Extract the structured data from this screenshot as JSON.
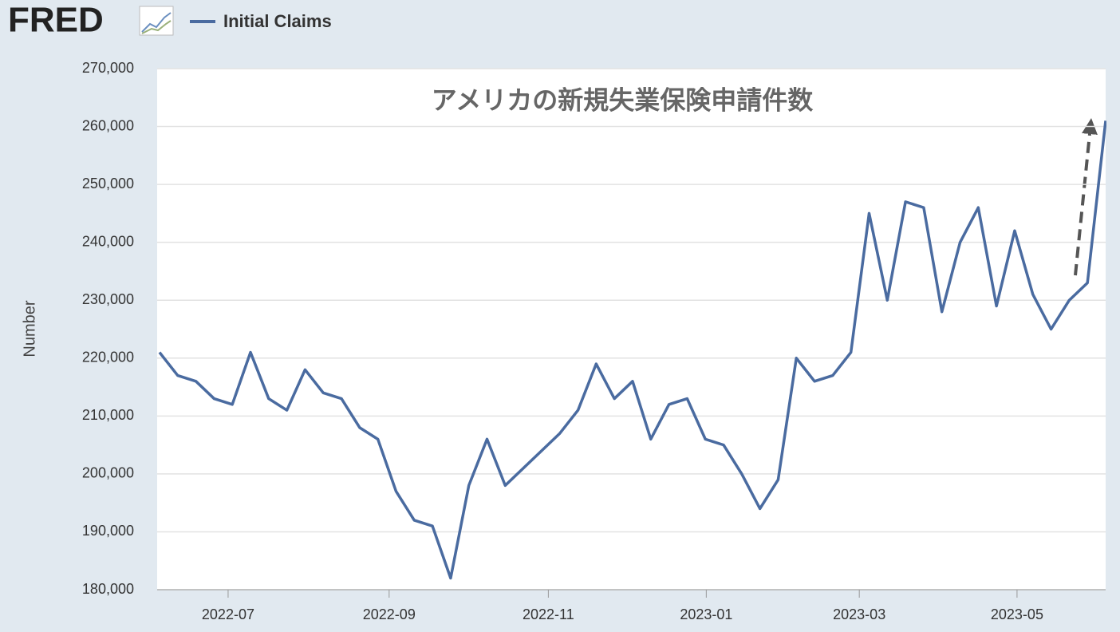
{
  "logo": "FRED",
  "chart_data": {
    "type": "line",
    "title": "アメリカの新規失業保険申請件数",
    "y_label": "Number",
    "series": [
      {
        "name": "Initial Claims",
        "color": "#4a6ba0",
        "values": [
          221000,
          217000,
          216000,
          213000,
          212000,
          221000,
          213000,
          211000,
          218000,
          214000,
          213000,
          208000,
          206000,
          197000,
          192000,
          191000,
          182000,
          198000,
          206000,
          198000,
          201000,
          204000,
          207000,
          211000,
          219000,
          213000,
          216000,
          206000,
          212000,
          213000,
          206000,
          205000,
          200000,
          194000,
          199000,
          220000,
          216000,
          217000,
          221000,
          245000,
          230000,
          247000,
          246000,
          228000,
          240000,
          246000,
          229000,
          242000,
          231000,
          225000,
          230000,
          233000,
          261000
        ]
      }
    ],
    "xlim": [
      -0.13,
      52
    ],
    "xticks": [
      {
        "value": 3.77,
        "label": "2022-07"
      },
      {
        "value": 12.62,
        "label": "2022-09"
      },
      {
        "value": 21.37,
        "label": "2022-11"
      },
      {
        "value": 30.05,
        "label": "2023-01"
      },
      {
        "value": 38.46,
        "label": "2023-03"
      },
      {
        "value": 47.13,
        "label": "2023-05"
      }
    ],
    "ylim": [
      180000,
      270000
    ],
    "yticks": [
      {
        "value": 180000,
        "label": "180,000"
      },
      {
        "value": 190000,
        "label": "190,000"
      },
      {
        "value": 200000,
        "label": "200,000"
      },
      {
        "value": 210000,
        "label": "210,000"
      },
      {
        "value": 220000,
        "label": "220,000"
      },
      {
        "value": 230000,
        "label": "230,000"
      },
      {
        "value": 240000,
        "label": "240,000"
      },
      {
        "value": 250000,
        "label": "250,000"
      },
      {
        "value": 260000,
        "label": "260,000"
      },
      {
        "value": 270000,
        "label": "270,000"
      }
    ],
    "grid": true
  }
}
